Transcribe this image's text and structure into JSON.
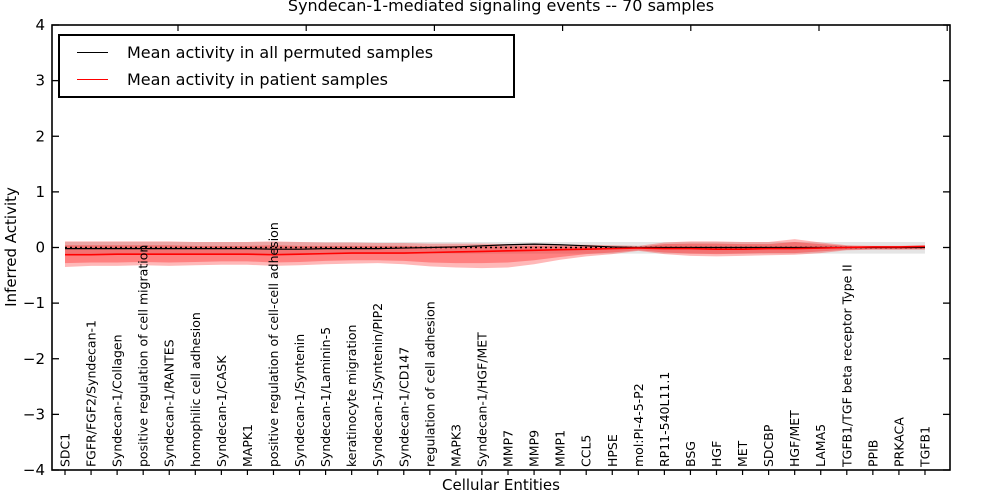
{
  "chart_data": {
    "type": "line",
    "title": "Syndecan-1-mediated signaling events -- 70 samples",
    "xlabel": "Cellular Entities",
    "ylabel": "Inferred Activity",
    "ylim": [
      -4,
      4
    ],
    "yticks": [
      4,
      3,
      2,
      1,
      0,
      -1,
      -2,
      -3,
      -4
    ],
    "grid": false,
    "legend_position": "upper left",
    "categories": [
      "SDC1",
      "FGFR/FGF2/Syndecan-1",
      "Syndecan-1/Collagen",
      "positive regulation of cell migration",
      "Syndecan-1/RANTES",
      "homophilic cell adhesion",
      "Syndecan-1/CASK",
      "MAPK1",
      "positive regulation of cell-cell adhesion",
      "Syndecan-1/Syntenin",
      "Syndecan-1/Laminin-5",
      "keratinocyte migration",
      "Syndecan-1/Syntenin/PIP2",
      "Syndecan-1/CD147",
      "regulation of cell adhesion",
      "MAPK3",
      "Syndecan-1/HGF/MET",
      "MMP7",
      "MMP9",
      "MMP1",
      "CCL5",
      "HPSE",
      "mol:PI-4-5-P2",
      "RP11-540L11.1",
      "BSG",
      "HGF",
      "MET",
      "SDCBP",
      "HGF/MET",
      "LAMA5",
      "TGFB1/TGF beta receptor Type II",
      "PPIB",
      "PRKACA",
      "TGFB1"
    ],
    "series": [
      {
        "name": "Mean activity in all permuted samples",
        "color": "#000000",
        "style": "solid",
        "values": [
          -0.02,
          -0.02,
          -0.02,
          -0.02,
          -0.02,
          -0.02,
          -0.02,
          -0.02,
          -0.03,
          -0.03,
          -0.02,
          -0.02,
          -0.02,
          -0.01,
          0,
          0.01,
          0.03,
          0.05,
          0.06,
          0.05,
          0.03,
          0.01,
          0,
          0,
          0,
          0,
          0,
          0,
          0,
          0,
          0,
          0,
          0,
          0
        ]
      },
      {
        "name": "Mean activity in patient samples",
        "color": "#ff0000",
        "style": "solid",
        "values": [
          -0.13,
          -0.13,
          -0.12,
          -0.12,
          -0.12,
          -0.12,
          -0.12,
          -0.12,
          -0.13,
          -0.12,
          -0.11,
          -0.1,
          -0.1,
          -0.1,
          -0.09,
          -0.08,
          -0.07,
          -0.06,
          -0.05,
          -0.04,
          -0.03,
          -0.02,
          -0.01,
          -0.02,
          -0.02,
          -0.03,
          -0.03,
          -0.02,
          -0.02,
          -0.01,
          0,
          0.01,
          0.01,
          0.02
        ]
      }
    ],
    "bands": [
      {
        "name": "permuted samples activity spread",
        "color": "rgba(0,0,0,0.10)",
        "upper": 0.1,
        "lower": -0.11
      },
      {
        "name": "patient samples activity spread outer",
        "color": "rgba(255,0,0,0.28)",
        "upper": [
          0.11,
          0.11,
          0.11,
          0.11,
          0.11,
          0.1,
          0.1,
          0.1,
          0.11,
          0.1,
          0.09,
          0.09,
          0.08,
          0.08,
          0.07,
          0.07,
          0.07,
          0.06,
          0.06,
          0.05,
          0.05,
          0.04,
          0.03,
          0.09,
          0.11,
          0.11,
          0.1,
          0.1,
          0.15,
          0.09,
          0.04,
          0.03,
          0.03,
          0.04
        ],
        "lower": [
          -0.35,
          -0.33,
          -0.33,
          -0.32,
          -0.33,
          -0.32,
          -0.31,
          -0.31,
          -0.33,
          -0.32,
          -0.3,
          -0.29,
          -0.28,
          -0.3,
          -0.34,
          -0.36,
          -0.37,
          -0.36,
          -0.3,
          -0.22,
          -0.16,
          -0.12,
          -0.06,
          -0.12,
          -0.15,
          -0.16,
          -0.15,
          -0.14,
          -0.13,
          -0.1,
          -0.05,
          -0.04,
          -0.04,
          -0.04
        ]
      },
      {
        "name": "patient samples activity spread inner",
        "color": "rgba(255,0,0,0.30)",
        "upper": [
          0.04,
          0.04,
          0.04,
          0.04,
          0.04,
          0.03,
          0.03,
          0.03,
          0.04,
          0.03,
          0.03,
          0.03,
          0.03,
          0.03,
          0.02,
          0.03,
          0.03,
          0.02,
          0.03,
          0.02,
          0.02,
          0.02,
          0.01,
          0.06,
          0.07,
          0.07,
          0.06,
          0.06,
          0.1,
          0.06,
          0.03,
          0.02,
          0.02,
          0.03
        ],
        "lower": [
          -0.28,
          -0.27,
          -0.27,
          -0.26,
          -0.27,
          -0.26,
          -0.25,
          -0.25,
          -0.27,
          -0.26,
          -0.24,
          -0.23,
          -0.23,
          -0.24,
          -0.27,
          -0.28,
          -0.28,
          -0.27,
          -0.23,
          -0.17,
          -0.12,
          -0.09,
          -0.05,
          -0.09,
          -0.11,
          -0.12,
          -0.11,
          -0.1,
          -0.1,
          -0.07,
          -0.04,
          -0.03,
          -0.03,
          -0.02
        ]
      }
    ],
    "reference_line": {
      "y": 0,
      "color": "#000000",
      "style": "dotted"
    }
  }
}
